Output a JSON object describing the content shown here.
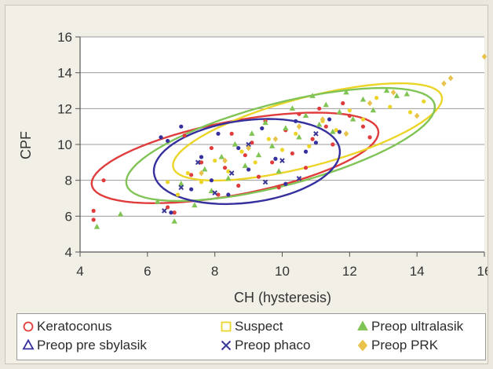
{
  "chart_data": {
    "type": "scatter",
    "title": "",
    "xlabel": "CH (hysteresis)",
    "ylabel": "CPF",
    "xlim": [
      4,
      16
    ],
    "ylim": [
      4,
      16
    ],
    "xticks": [
      4,
      6,
      8,
      10,
      12,
      14,
      16
    ],
    "yticks": [
      4,
      6,
      8,
      10,
      12,
      14,
      16
    ],
    "grid": "horizontal",
    "legend_position": "bottom",
    "series": [
      {
        "name": "Keratoconus",
        "marker": "circle-open",
        "color": "#e03c3c",
        "points": [
          [
            4.4,
            6.3
          ],
          [
            4.4,
            5.8
          ],
          [
            4.7,
            8.0
          ],
          [
            6.6,
            6.5
          ],
          [
            6.8,
            6.2
          ],
          [
            7.1,
            10.5
          ],
          [
            7.3,
            8.3
          ],
          [
            7.6,
            9.0
          ],
          [
            7.9,
            9.8
          ],
          [
            8.1,
            7.2
          ],
          [
            8.3,
            8.7
          ],
          [
            8.5,
            10.6
          ],
          [
            8.7,
            7.7
          ],
          [
            8.9,
            9.4
          ],
          [
            9.1,
            10.1
          ],
          [
            9.3,
            8.2
          ],
          [
            9.5,
            11.3
          ],
          [
            9.7,
            9.0
          ],
          [
            9.9,
            7.6
          ],
          [
            10.1,
            10.8
          ],
          [
            10.3,
            9.5
          ],
          [
            10.5,
            11.7
          ],
          [
            10.7,
            8.7
          ],
          [
            10.9,
            10.3
          ],
          [
            11.1,
            12.0
          ],
          [
            11.3,
            11.0
          ],
          [
            11.5,
            10.0
          ],
          [
            11.8,
            12.3
          ],
          [
            12.0,
            11.6
          ],
          [
            12.4,
            11.0
          ],
          [
            12.6,
            10.4
          ]
        ],
        "ellipse": {
          "cx": 8.6,
          "cy": 9.25,
          "rx": 4.55,
          "ry": 1.95,
          "angle_deg": 23
        }
      },
      {
        "name": "Suspect",
        "marker": "square-open",
        "color": "#ecd528",
        "points": [
          [
            6.6,
            7.9
          ],
          [
            6.9,
            7.2
          ],
          [
            7.2,
            8.4
          ],
          [
            7.6,
            7.9
          ],
          [
            8.0,
            9.1
          ],
          [
            8.4,
            8.5
          ],
          [
            8.8,
            9.6
          ],
          [
            9.2,
            9.0
          ],
          [
            9.6,
            10.3
          ],
          [
            10.0,
            9.7
          ],
          [
            10.4,
            10.6
          ],
          [
            10.8,
            9.9
          ],
          [
            11.2,
            11.3
          ],
          [
            11.6,
            10.8
          ],
          [
            12.0,
            11.9
          ],
          [
            12.4,
            11.4
          ],
          [
            12.8,
            12.6
          ],
          [
            13.2,
            12.1
          ],
          [
            13.8,
            11.8
          ],
          [
            14.2,
            12.4
          ]
        ],
        "ellipse": {
          "cx": 10.75,
          "cy": 10.7,
          "rx": 4.5,
          "ry": 1.75,
          "angle_deg": 30
        }
      },
      {
        "name": "Preop ultralasik",
        "marker": "triangle-filled",
        "color": "#80c455",
        "points": [
          [
            4.5,
            5.4
          ],
          [
            5.2,
            6.1
          ],
          [
            6.3,
            6.8
          ],
          [
            6.8,
            5.7
          ],
          [
            7.0,
            7.8
          ],
          [
            7.4,
            6.6
          ],
          [
            7.7,
            8.6
          ],
          [
            7.9,
            7.4
          ],
          [
            8.2,
            9.3
          ],
          [
            8.4,
            8.1
          ],
          [
            8.6,
            10.0
          ],
          [
            8.9,
            8.8
          ],
          [
            9.1,
            10.6
          ],
          [
            9.3,
            9.4
          ],
          [
            9.5,
            11.2
          ],
          [
            9.7,
            9.9
          ],
          [
            9.9,
            8.5
          ],
          [
            10.1,
            10.9
          ],
          [
            10.3,
            12.0
          ],
          [
            10.5,
            10.4
          ],
          [
            10.7,
            11.6
          ],
          [
            10.9,
            12.7
          ],
          [
            11.1,
            11.1
          ],
          [
            11.3,
            12.2
          ],
          [
            11.5,
            10.7
          ],
          [
            11.7,
            11.8
          ],
          [
            11.9,
            12.9
          ],
          [
            12.1,
            11.4
          ],
          [
            12.4,
            12.5
          ],
          [
            12.7,
            11.9
          ],
          [
            13.1,
            13.0
          ],
          [
            13.4,
            12.7
          ],
          [
            13.7,
            12.8
          ]
        ],
        "ellipse": {
          "cx": 9.95,
          "cy": 10.0,
          "rx": 5.15,
          "ry": 2.1,
          "angle_deg": 30
        }
      },
      {
        "name": "Preop pre sbylasik",
        "marker": "triangle-open",
        "color": "#35309e",
        "points": [
          [
            6.4,
            10.4
          ],
          [
            6.6,
            10.2
          ],
          [
            7.0,
            11.0
          ],
          [
            6.7,
            6.2
          ],
          [
            7.3,
            7.5
          ],
          [
            7.6,
            9.3
          ],
          [
            7.9,
            8.0
          ],
          [
            8.1,
            10.6
          ],
          [
            8.4,
            7.2
          ],
          [
            8.7,
            9.8
          ],
          [
            9.0,
            8.6
          ],
          [
            9.4,
            10.9
          ],
          [
            9.8,
            9.2
          ],
          [
            10.1,
            7.8
          ],
          [
            10.4,
            11.3
          ],
          [
            10.7,
            9.6
          ],
          [
            11.0,
            10.1
          ],
          [
            11.4,
            11.4
          ],
          [
            11.7,
            10.7
          ]
        ],
        "ellipse": {
          "cx": 8.95,
          "cy": 9.05,
          "rx": 2.9,
          "ry": 2.2,
          "angle_deg": 28
        }
      },
      {
        "name": "Preop phaco",
        "marker": "x",
        "color": "#3a3696",
        "points": [
          [
            6.5,
            6.3
          ],
          [
            7.0,
            7.6
          ],
          [
            7.5,
            9.0
          ],
          [
            8.0,
            7.3
          ],
          [
            8.5,
            8.4
          ],
          [
            9.0,
            10.0
          ],
          [
            9.5,
            7.9
          ],
          [
            10.0,
            9.1
          ],
          [
            10.5,
            8.1
          ],
          [
            11.0,
            10.6
          ]
        ],
        "ellipse": null
      },
      {
        "name": "Preop PRK",
        "marker": "diamond-filled",
        "color": "#e8c24a",
        "points": [
          [
            7.6,
            8.4
          ],
          [
            8.3,
            9.1
          ],
          [
            9.0,
            9.8
          ],
          [
            9.8,
            10.3
          ],
          [
            10.5,
            11.0
          ],
          [
            11.2,
            11.4
          ],
          [
            11.9,
            10.6
          ],
          [
            12.6,
            12.3
          ],
          [
            13.3,
            12.9
          ],
          [
            14.0,
            11.6
          ],
          [
            14.8,
            13.4
          ],
          [
            15.0,
            13.7
          ],
          [
            16.0,
            14.9
          ]
        ],
        "ellipse": null
      }
    ]
  }
}
